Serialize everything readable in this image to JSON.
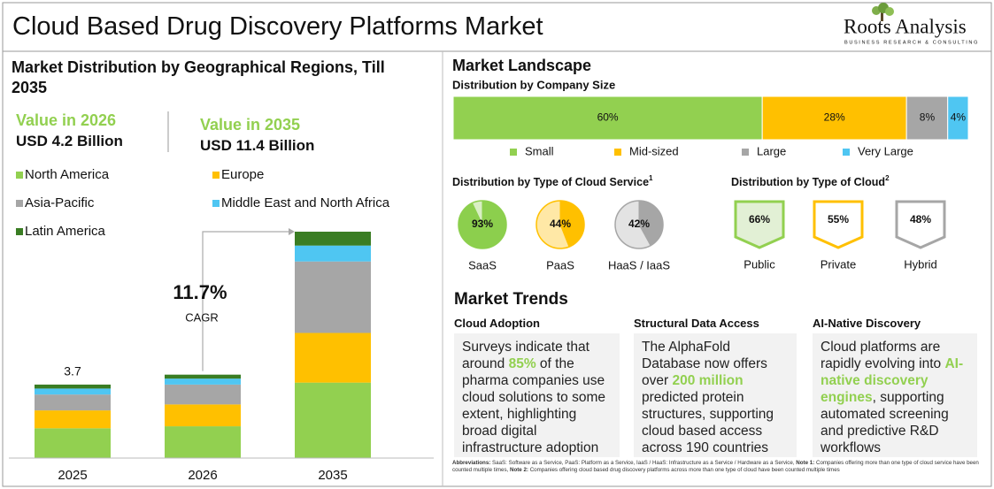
{
  "header": {
    "title": "Cloud Based Drug Discovery Platforms Market",
    "logo": "Roots Analysis",
    "logo_tagline": "BUSINESS RESEARCH & CONSULTING"
  },
  "market_distribution": {
    "title": "Market Distribution by Geographical Regions, Till 2035",
    "highlights": [
      {
        "label": "Value in 2026",
        "value": "USD 4.2 Billion"
      },
      {
        "label": "Value in 2035",
        "value": "USD 11.4 Billion"
      }
    ]
  },
  "market_landscape": {
    "title": "Market Landscape"
  },
  "chart_data": [
    {
      "type": "bar",
      "stacked": true,
      "categories": [
        "2025",
        "2026",
        "2035"
      ],
      "series": [
        {
          "name": "North America",
          "color": "#92d050",
          "values": [
            1.5,
            1.6,
            3.8
          ]
        },
        {
          "name": "Europe",
          "color": "#ffc000",
          "values": [
            0.9,
            1.1,
            2.5
          ]
        },
        {
          "name": "Asia-Pacific",
          "color": "#a6a6a6",
          "values": [
            0.8,
            1.0,
            3.6
          ]
        },
        {
          "name": "Middle East and North Africa",
          "color": "#4fc6f2",
          "values": [
            0.3,
            0.3,
            0.8
          ]
        },
        {
          "name": "Latin America",
          "color": "#3a7d23",
          "values": [
            0.2,
            0.2,
            0.7
          ]
        }
      ],
      "total_labels": [
        3.7,
        null,
        null
      ],
      "annotations": [
        "11.7%",
        "CAGR"
      ]
    },
    {
      "type": "bar",
      "stacked": true,
      "horizontal": true,
      "title": "Distribution by Company Size",
      "series": [
        {
          "name": "Small",
          "color": "#92d050",
          "values": [
            60
          ],
          "value_labels": [
            "60%"
          ]
        },
        {
          "name": "Mid-sized",
          "color": "#ffc000",
          "values": [
            28
          ],
          "value_labels": [
            "28%"
          ]
        },
        {
          "name": "Large",
          "color": "#a6a6a6",
          "values": [
            8
          ],
          "value_labels": [
            "8%"
          ]
        },
        {
          "name": "Very Large",
          "color": "#4fc6f2",
          "values": [
            4
          ],
          "value_labels": [
            "4%"
          ]
        }
      ]
    },
    {
      "type": "pie",
      "title": "Distribution by Type of Cloud Service",
      "title_note": "1",
      "categories": [
        "SaaS",
        "PaaS",
        "HaaS / IaaS"
      ],
      "values": [
        93,
        44,
        42
      ],
      "value_labels": [
        "93%",
        "44%",
        "42%"
      ],
      "colors": [
        "#8ccf4d",
        "#ffc000",
        "#a6a6a6"
      ],
      "rest_colors": [
        "#d9efc4",
        "#ffe8a6",
        "#e3e3e3"
      ]
    },
    {
      "type": "badge",
      "title": "Distribution by Type of Cloud",
      "title_note": "2",
      "categories": [
        "Public",
        "Private",
        "Hybrid"
      ],
      "values": [
        66,
        55,
        48
      ],
      "value_labels": [
        "66%",
        "55%",
        "48%"
      ],
      "colors": [
        "#92d050",
        "#ffc000",
        "#a6a6a6"
      ],
      "fill_colors": [
        "#e2f0d5",
        "#ffffff",
        "#ffffff"
      ]
    }
  ],
  "market_trends": {
    "title": "Market Trends",
    "cards": [
      {
        "heading": "Cloud Adoption",
        "body": [
          {
            "text": "Surveys indicate that around "
          },
          {
            "text": "85%",
            "color": "#92d050"
          },
          {
            "text": " of the pharma companies use cloud solutions to some extent, highlighting broad digital infrastructure adoption"
          }
        ]
      },
      {
        "heading": "Structural Data Access",
        "body": [
          {
            "text": "The AlphaFold Database now offers over "
          },
          {
            "text": "200 million",
            "color": "#92d050"
          },
          {
            "text": " predicted protein structures, supporting cloud based access across 190 countries"
          }
        ]
      },
      {
        "heading": "AI-Native Discovery",
        "body": [
          {
            "text": "Cloud platforms are rapidly evolving into "
          },
          {
            "text": "AI-native discovery engines",
            "color": "#92d050"
          },
          {
            "text": ", supporting automated screening and predictive R&D workflows"
          }
        ]
      }
    ]
  },
  "footnote": [
    {
      "text": "Abbreviations:",
      "bold": true
    },
    {
      "text": " SaaS: Software as a Service, PaaS: Platform as a Service, IaaS / HaaS: Infrastructure as a Service / Hardware as a Service, "
    },
    {
      "text": "Note 1:",
      "bold": true
    },
    {
      "text": " Companies offering more than one type of cloud service have been counted multiple times, "
    },
    {
      "text": "Note 2:",
      "bold": true
    },
    {
      "text": " Companies offering cloud based drug discovery platforms across more than one type of cloud have been counted multiple times"
    }
  ]
}
